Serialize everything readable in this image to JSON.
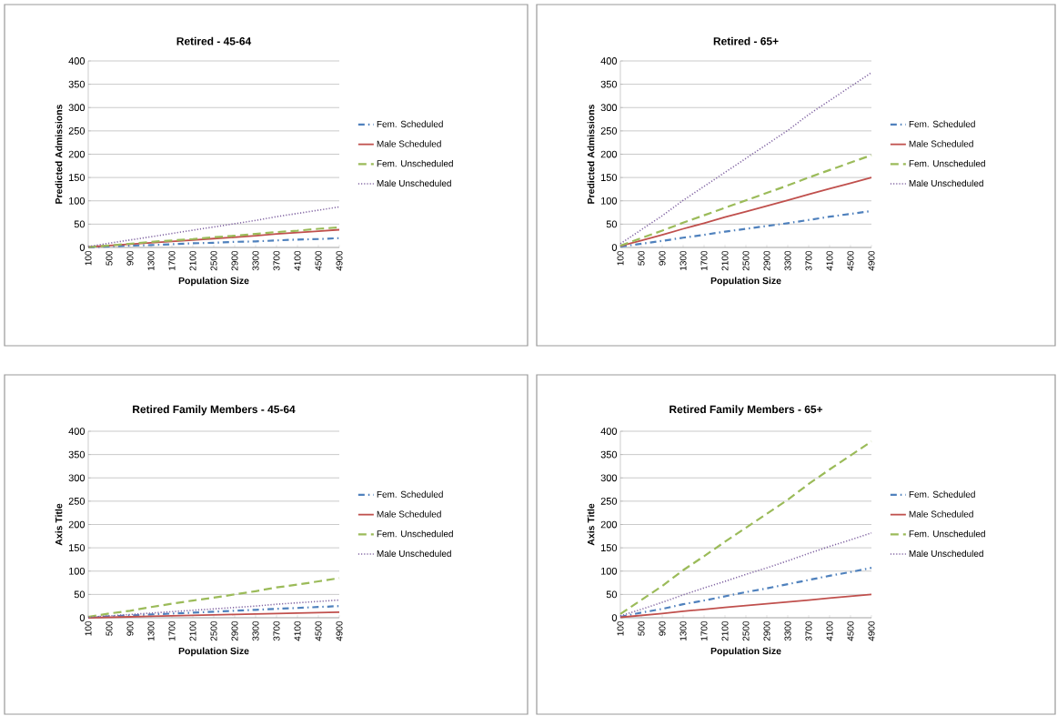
{
  "chart_data": [
    {
      "type": "line",
      "title": "Retired - 45-64",
      "xlabel": "Population Size",
      "ylabel": "Predicted Admissions",
      "categories": [
        "100",
        "500",
        "900",
        "1300",
        "1700",
        "2100",
        "2500",
        "2900",
        "3300",
        "3700",
        "4100",
        "4500",
        "4900"
      ],
      "ylim": [
        0,
        400
      ],
      "yticks": [
        0,
        50,
        100,
        150,
        200,
        250,
        300,
        350,
        400
      ],
      "grid": "y",
      "legend": "right",
      "series": [
        {
          "name": "Fem. Scheduled",
          "color": "#4f81bd",
          "line_style": "dashdot",
          "values": [
            0,
            2,
            4,
            5,
            7,
            9,
            10,
            12,
            13,
            15,
            17,
            18,
            20
          ]
        },
        {
          "name": "Male Scheduled",
          "color": "#c0504d",
          "line_style": "solid",
          "values": [
            1,
            4,
            7,
            10,
            13,
            16,
            19,
            22,
            25,
            29,
            32,
            35,
            38
          ]
        },
        {
          "name": "Fem. Unscheduled",
          "color": "#9bbb59",
          "line_style": "dashed",
          "values": [
            1,
            4,
            8,
            12,
            15,
            18,
            22,
            25,
            29,
            33,
            36,
            40,
            43
          ]
        },
        {
          "name": "Male Unscheduled",
          "color": "#8064a2",
          "line_style": "dotted",
          "values": [
            2,
            9,
            16,
            23,
            30,
            37,
            44,
            51,
            58,
            66,
            73,
            80,
            87
          ]
        }
      ]
    },
    {
      "type": "line",
      "title": "Retired - 65+",
      "xlabel": "Population Size",
      "ylabel": "Predicted Admissions",
      "categories": [
        "100",
        "500",
        "900",
        "1300",
        "1700",
        "2100",
        "2500",
        "2900",
        "3300",
        "3700",
        "4100",
        "4500",
        "4900"
      ],
      "ylim": [
        0,
        400
      ],
      "yticks": [
        0,
        50,
        100,
        150,
        200,
        250,
        300,
        350,
        400
      ],
      "grid": "y",
      "legend": "right",
      "series": [
        {
          "name": "Fem. Scheduled",
          "color": "#4f81bd",
          "line_style": "dashdot",
          "values": [
            2,
            8,
            14,
            21,
            27,
            34,
            40,
            46,
            52,
            59,
            66,
            72,
            78
          ]
        },
        {
          "name": "Male Scheduled",
          "color": "#c0504d",
          "line_style": "solid",
          "values": [
            3,
            15,
            27,
            40,
            52,
            65,
            77,
            89,
            101,
            114,
            126,
            138,
            150
          ]
        },
        {
          "name": "Fem. Unscheduled",
          "color": "#9bbb59",
          "line_style": "dashed",
          "values": [
            4,
            20,
            36,
            53,
            69,
            85,
            101,
            117,
            133,
            150,
            166,
            182,
            198
          ]
        },
        {
          "name": "Male Unscheduled",
          "color": "#8064a2",
          "line_style": "dotted",
          "values": [
            8,
            38,
            68,
            101,
            131,
            161,
            191,
            221,
            251,
            285,
            315,
            345,
            375
          ]
        }
      ]
    },
    {
      "type": "line",
      "title": "Retired Family Members - 45-64",
      "xlabel": "Population Size",
      "ylabel": "Axis Title",
      "categories": [
        "100",
        "500",
        "900",
        "1300",
        "1700",
        "2100",
        "2500",
        "2900",
        "3300",
        "3700",
        "4100",
        "4500",
        "4900"
      ],
      "ylim": [
        0,
        400
      ],
      "yticks": [
        0,
        50,
        100,
        150,
        200,
        250,
        300,
        350,
        400
      ],
      "grid": "y",
      "legend": "right",
      "series": [
        {
          "name": "Fem. Scheduled",
          "color": "#4f81bd",
          "line_style": "dashdot",
          "values": [
            1,
            3,
            5,
            7,
            9,
            11,
            13,
            15,
            17,
            19,
            21,
            23,
            25
          ]
        },
        {
          "name": "Male Scheduled",
          "color": "#c0504d",
          "line_style": "solid",
          "values": [
            0,
            1,
            2,
            3,
            4,
            5,
            6,
            7,
            8,
            9,
            10,
            11,
            12
          ]
        },
        {
          "name": "Fem. Unscheduled",
          "color": "#9bbb59",
          "line_style": "dashed",
          "values": [
            2,
            9,
            15,
            23,
            30,
            37,
            43,
            50,
            57,
            65,
            71,
            78,
            85
          ]
        },
        {
          "name": "Male Unscheduled",
          "color": "#8064a2",
          "line_style": "dotted",
          "values": [
            1,
            4,
            7,
            10,
            13,
            16,
            19,
            22,
            25,
            29,
            32,
            35,
            38
          ]
        }
      ]
    },
    {
      "type": "line",
      "title": "Retired Family Members - 65+",
      "xlabel": "Population Size",
      "ylabel": "Axis Title",
      "categories": [
        "100",
        "500",
        "900",
        "1300",
        "1700",
        "2100",
        "2500",
        "2900",
        "3300",
        "3700",
        "4100",
        "4500",
        "4900"
      ],
      "ylim": [
        0,
        400
      ],
      "yticks": [
        0,
        50,
        100,
        150,
        200,
        250,
        300,
        350,
        400
      ],
      "grid": "y",
      "legend": "right",
      "series": [
        {
          "name": "Fem. Scheduled",
          "color": "#4f81bd",
          "line_style": "dashdot",
          "values": [
            2,
            11,
            19,
            29,
            37,
            46,
            55,
            63,
            72,
            81,
            90,
            98,
            107
          ]
        },
        {
          "name": "Male Scheduled",
          "color": "#c0504d",
          "line_style": "solid",
          "values": [
            1,
            5,
            9,
            14,
            18,
            22,
            26,
            30,
            34,
            38,
            42,
            46,
            50
          ]
        },
        {
          "name": "Fem. Unscheduled",
          "color": "#9bbb59",
          "line_style": "dashed",
          "values": [
            8,
            38,
            68,
            102,
            132,
            163,
            193,
            223,
            253,
            287,
            318,
            348,
            378
          ]
        },
        {
          "name": "Male Unscheduled",
          "color": "#8064a2",
          "line_style": "dotted",
          "values": [
            4,
            18,
            33,
            49,
            64,
            78,
            93,
            107,
            122,
            138,
            153,
            167,
            182
          ]
        }
      ]
    }
  ]
}
